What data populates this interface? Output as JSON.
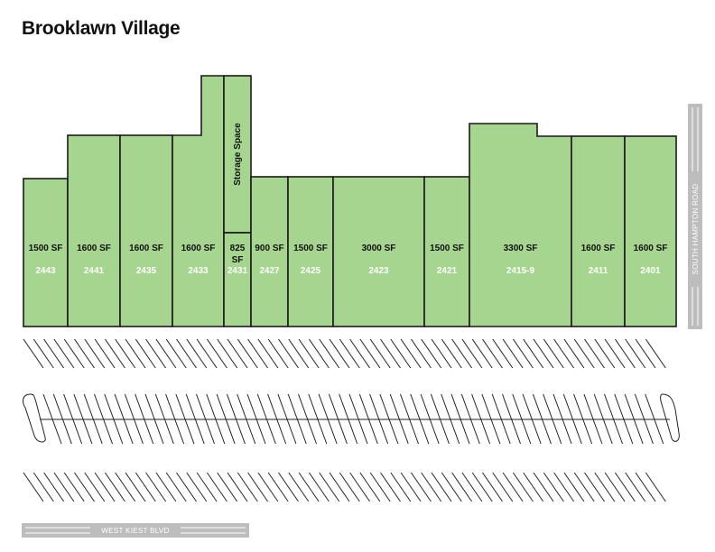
{
  "title": "Brooklawn Village",
  "colors": {
    "unit_fill": "#a6d58f",
    "outline": "#1a1a1a",
    "road_fill": "#bdbdbd",
    "road_line": "#ffffff"
  },
  "units": [
    {
      "id": "u2443",
      "sf": "1500 SF",
      "number": "2443"
    },
    {
      "id": "u2441",
      "sf": "1600 SF",
      "number": "2441"
    },
    {
      "id": "u2435",
      "sf": "1600 SF",
      "number": "2435"
    },
    {
      "id": "u2433",
      "sf": "1600 SF",
      "number": "2433"
    },
    {
      "id": "u2431",
      "sf_line1": "825",
      "sf_line2": "SF",
      "number": "2431",
      "storage_label": "Storage Space"
    },
    {
      "id": "u2427",
      "sf": "900 SF",
      "number": "2427"
    },
    {
      "id": "u2425",
      "sf": "1500 SF",
      "number": "2425"
    },
    {
      "id": "u2423",
      "sf": "3000 SF",
      "number": "2423"
    },
    {
      "id": "u2421",
      "sf": "1500 SF",
      "number": "2421"
    },
    {
      "id": "u24159",
      "sf": "3300 SF",
      "number": "2415-9"
    },
    {
      "id": "u2411",
      "sf": "1600 SF",
      "number": "2411"
    },
    {
      "id": "u2401",
      "sf": "1600 SF",
      "number": "2401"
    }
  ],
  "roads": {
    "bottom": "WEST KIEST BLVD",
    "right": "SOUTH HAMPTON ROAD"
  }
}
